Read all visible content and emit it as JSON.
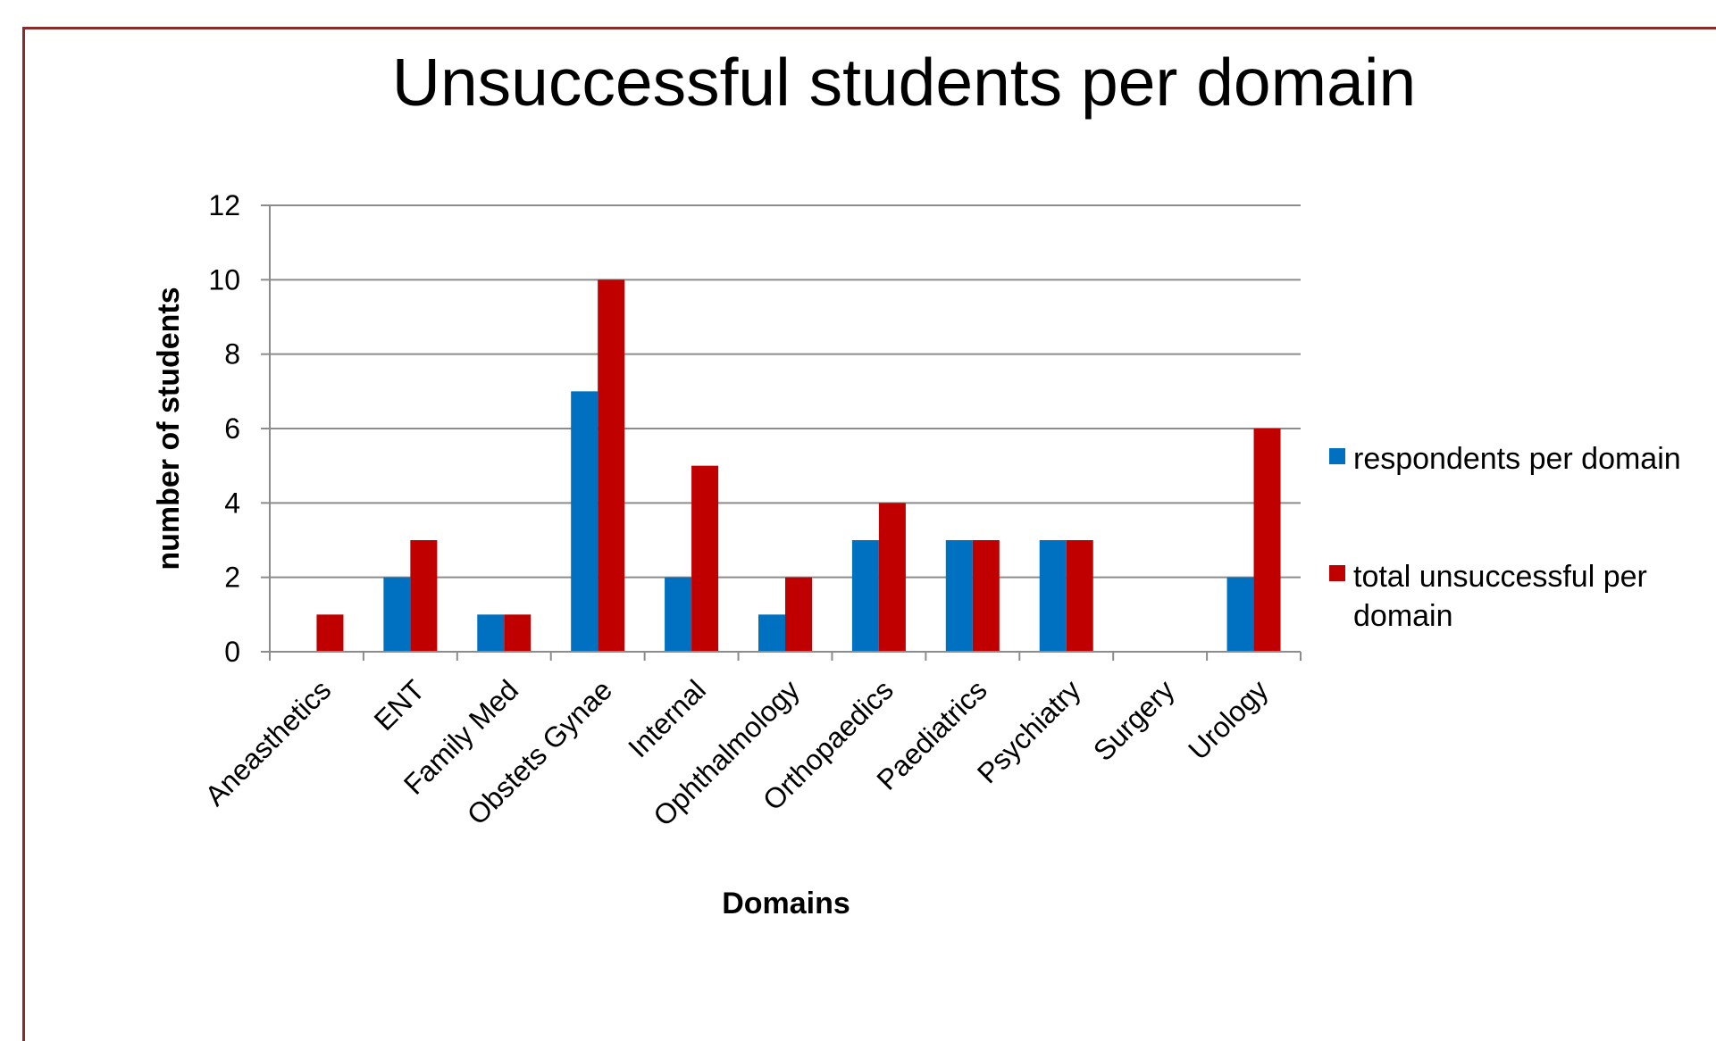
{
  "chart_data": {
    "type": "bar",
    "title": "Unsuccessful students per domain",
    "xlabel": "Domains",
    "ylabel": "number of students",
    "ylim": [
      0,
      12
    ],
    "yticks": [
      0,
      2,
      4,
      6,
      8,
      10,
      12
    ],
    "grid": true,
    "legend_position": "right",
    "categories": [
      "Aneasthetics",
      "ENT",
      "Family Med",
      "Obstets Gynae",
      "Internal",
      "Ophthalmology",
      "Orthopaedics",
      "Paediatrics",
      "Psychiatry",
      "Surgery",
      "Urology"
    ],
    "series": [
      {
        "name": "respondents per domain",
        "color": "#0070C0",
        "values": [
          0,
          2,
          1,
          7,
          2,
          1,
          3,
          3,
          3,
          0,
          2
        ]
      },
      {
        "name": "total unsuccessful per domain",
        "color": "#C00000",
        "values": [
          1,
          3,
          1,
          10,
          5,
          2,
          4,
          3,
          3,
          0,
          6
        ]
      }
    ]
  }
}
